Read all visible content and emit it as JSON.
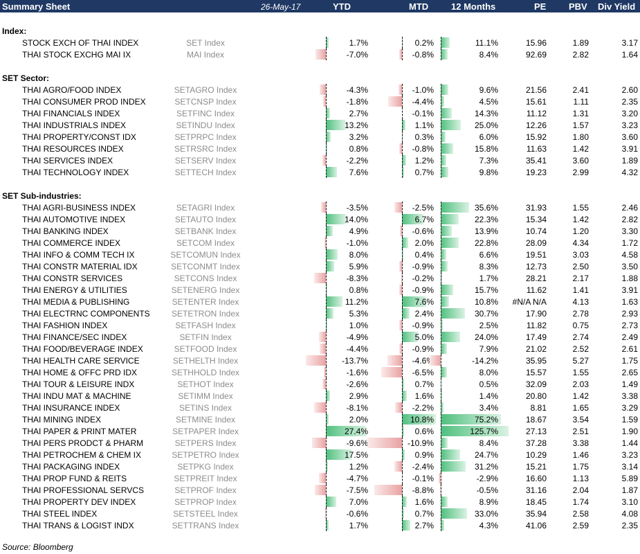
{
  "header": {
    "title": "Summary Sheet",
    "date": "26-May-17",
    "columns": [
      "YTD",
      "MTD",
      "12 Months",
      "PE",
      "PBV",
      "Div Yield"
    ]
  },
  "sections": [
    {
      "title": "Index:",
      "rows": [
        {
          "name": "STOCK EXCH OF THAI INDEX",
          "ticker": "SET Index",
          "ytd": 1.7,
          "ytd_text": "1.7%",
          "mtd": 0.2,
          "mtd_text": "0.2%",
          "m12": 11.1,
          "m12_text": "11.1%",
          "pe": "15.96",
          "pbv": "1.89",
          "dy": "3.17"
        },
        {
          "name": "THAI STOCK EXCHG MAI IX",
          "ticker": "MAI Index",
          "ytd": -7.0,
          "ytd_text": "-7.0%",
          "mtd": -0.8,
          "mtd_text": "-0.8%",
          "m12": 8.4,
          "m12_text": "8.4%",
          "pe": "92.69",
          "pbv": "2.82",
          "dy": "1.64"
        }
      ]
    },
    {
      "title": "SET Sector:",
      "rows": [
        {
          "name": "THAI AGRO/FOOD INDEX",
          "ticker": "SETAGRO Index",
          "ytd": -4.3,
          "ytd_text": "-4.3%",
          "mtd": -1.0,
          "mtd_text": "-1.0%",
          "m12": 9.6,
          "m12_text": "9.6%",
          "pe": "21.56",
          "pbv": "2.41",
          "dy": "2.60"
        },
        {
          "name": "THAI CONSUMER PROD INDEX",
          "ticker": "SETCNSP Index",
          "ytd": -1.8,
          "ytd_text": "-1.8%",
          "mtd": -4.4,
          "mtd_text": "-4.4%",
          "m12": 4.5,
          "m12_text": "4.5%",
          "pe": "15.61",
          "pbv": "1.11",
          "dy": "2.35"
        },
        {
          "name": "THAI FINANCIALS INDEX",
          "ticker": "SETFINC Index",
          "ytd": 2.7,
          "ytd_text": "2.7%",
          "mtd": -0.1,
          "mtd_text": "-0.1%",
          "m12": 14.3,
          "m12_text": "14.3%",
          "pe": "11.12",
          "pbv": "1.31",
          "dy": "3.20"
        },
        {
          "name": "THAI INDUSTRIALS INDEX",
          "ticker": "SETINDU Index",
          "ytd": 13.2,
          "ytd_text": "13.2%",
          "mtd": 1.1,
          "mtd_text": "1.1%",
          "m12": 25.0,
          "m12_text": "25.0%",
          "pe": "12.26",
          "pbv": "1.57",
          "dy": "3.23"
        },
        {
          "name": "THAI PROPERTY/CONST IDX",
          "ticker": "SETPRPC Index",
          "ytd": 3.2,
          "ytd_text": "3.2%",
          "mtd": 0.3,
          "mtd_text": "0.3%",
          "m12": 6.0,
          "m12_text": "6.0%",
          "pe": "15.92",
          "pbv": "1.80",
          "dy": "3.60"
        },
        {
          "name": "THAI RESOURCES INDEX",
          "ticker": "SETRSRC Index",
          "ytd": 0.8,
          "ytd_text": "0.8%",
          "mtd": -0.8,
          "mtd_text": "-0.8%",
          "m12": 15.8,
          "m12_text": "15.8%",
          "pe": "11.63",
          "pbv": "1.42",
          "dy": "3.91"
        },
        {
          "name": "THAI SERVICES INDEX",
          "ticker": "SETSERV Index",
          "ytd": -2.2,
          "ytd_text": "-2.2%",
          "mtd": 1.2,
          "mtd_text": "1.2%",
          "m12": 7.3,
          "m12_text": "7.3%",
          "pe": "35.41",
          "pbv": "3.60",
          "dy": "1.89"
        },
        {
          "name": "THAI TECHNOLOGY INDEX",
          "ticker": "SETTECH Index",
          "ytd": 7.6,
          "ytd_text": "7.6%",
          "mtd": 0.7,
          "mtd_text": "0.7%",
          "m12": 9.8,
          "m12_text": "9.8%",
          "pe": "19.23",
          "pbv": "2.99",
          "dy": "4.32"
        }
      ]
    },
    {
      "title": "SET Sub-industries:",
      "rows": [
        {
          "name": "THAI AGRI-BUSINESS INDEX",
          "ticker": "SETAGRI Index",
          "ytd": -3.5,
          "ytd_text": "-3.5%",
          "mtd": -2.5,
          "mtd_text": "-2.5%",
          "m12": 35.6,
          "m12_text": "35.6%",
          "pe": "31.93",
          "pbv": "1.55",
          "dy": "2.46"
        },
        {
          "name": "THAI AUTOMOTIVE INDEX",
          "ticker": "SETAUTO Index",
          "ytd": 14.0,
          "ytd_text": "14.0%",
          "mtd": 6.7,
          "mtd_text": "6.7%",
          "m12": 22.3,
          "m12_text": "22.3%",
          "pe": "15.34",
          "pbv": "1.42",
          "dy": "2.82"
        },
        {
          "name": "THAI BANKING INDEX",
          "ticker": "SETBANK Index",
          "ytd": 4.9,
          "ytd_text": "4.9%",
          "mtd": -0.6,
          "mtd_text": "-0.6%",
          "m12": 13.9,
          "m12_text": "13.9%",
          "pe": "10.74",
          "pbv": "1.20",
          "dy": "3.30"
        },
        {
          "name": "THAI COMMERCE INDEX",
          "ticker": "SETCOM Index",
          "ytd": -1.0,
          "ytd_text": "-1.0%",
          "mtd": 2.0,
          "mtd_text": "2.0%",
          "m12": 22.8,
          "m12_text": "22.8%",
          "pe": "28.09",
          "pbv": "4.34",
          "dy": "1.72"
        },
        {
          "name": "THAI INFO & COMM TECH IX",
          "ticker": "SETCOMUN Index",
          "ytd": 8.0,
          "ytd_text": "8.0%",
          "mtd": 0.4,
          "mtd_text": "0.4%",
          "m12": 6.6,
          "m12_text": "6.6%",
          "pe": "19.51",
          "pbv": "3.03",
          "dy": "4.58"
        },
        {
          "name": "THAI CONSTR MATERIAL IDX",
          "ticker": "SETCONMT Index",
          "ytd": 5.9,
          "ytd_text": "5.9%",
          "mtd": -0.9,
          "mtd_text": "-0.9%",
          "m12": 8.3,
          "m12_text": "8.3%",
          "pe": "12.73",
          "pbv": "2.50",
          "dy": "3.50"
        },
        {
          "name": "THAI CONSTR SERVICES",
          "ticker": "SETCONS Index",
          "ytd": -8.3,
          "ytd_text": "-8.3%",
          "mtd": -0.2,
          "mtd_text": "-0.2%",
          "m12": 1.7,
          "m12_text": "1.7%",
          "pe": "28.21",
          "pbv": "2.17",
          "dy": "1.88"
        },
        {
          "name": "THAI ENERGY & UTILITIES",
          "ticker": "SETENERG Index",
          "ytd": 0.8,
          "ytd_text": "0.8%",
          "mtd": -0.9,
          "mtd_text": "-0.9%",
          "m12": 15.7,
          "m12_text": "15.7%",
          "pe": "11.62",
          "pbv": "1.41",
          "dy": "3.91"
        },
        {
          "name": "THAI MEDIA & PUBLISHING",
          "ticker": "SETENTER Index",
          "ytd": 11.2,
          "ytd_text": "11.2%",
          "mtd": 7.6,
          "mtd_text": "7.6%",
          "m12": 10.8,
          "m12_text": "10.8%",
          "pe": "#N/A N/A",
          "pbv": "4.13",
          "dy": "1.63"
        },
        {
          "name": "THAI ELECTRNC COMPONENTS",
          "ticker": "SETETRON Index",
          "ytd": 5.3,
          "ytd_text": "5.3%",
          "mtd": 2.4,
          "mtd_text": "2.4%",
          "m12": 30.7,
          "m12_text": "30.7%",
          "pe": "17.90",
          "pbv": "2.78",
          "dy": "2.93"
        },
        {
          "name": "THAI FASHION INDEX",
          "ticker": "SETFASH Index",
          "ytd": 1.0,
          "ytd_text": "1.0%",
          "mtd": -0.9,
          "mtd_text": "-0.9%",
          "m12": 2.5,
          "m12_text": "2.5%",
          "pe": "11.82",
          "pbv": "0.75",
          "dy": "2.73"
        },
        {
          "name": "THAI FINANCE/SEC INDEX",
          "ticker": "SETFIN Index",
          "ytd": -4.9,
          "ytd_text": "-4.9%",
          "mtd": 5.0,
          "mtd_text": "5.0%",
          "m12": 24.0,
          "m12_text": "24.0%",
          "pe": "17.49",
          "pbv": "2.74",
          "dy": "2.49"
        },
        {
          "name": "THAI FOOD/BEVERAGE INDEX",
          "ticker": "SETFOOD Index",
          "ytd": -4.4,
          "ytd_text": "-4.4%",
          "mtd": -0.9,
          "mtd_text": "-0.9%",
          "m12": 7.9,
          "m12_text": "7.9%",
          "pe": "21.02",
          "pbv": "2.52",
          "dy": "2.61"
        },
        {
          "name": "THAI HEALTH CARE SERVICE",
          "ticker": "SETHELTH Index",
          "ytd": -13.7,
          "ytd_text": "-13.7%",
          "mtd": -4.6,
          "mtd_text": "-4.6%",
          "m12": -14.2,
          "m12_text": "-14.2%",
          "pe": "35.95",
          "pbv": "5.27",
          "dy": "1.75"
        },
        {
          "name": "THAI HOME & OFFC PRD IDX",
          "ticker": "SETHHOLD Index",
          "ytd": -1.6,
          "ytd_text": "-1.6%",
          "mtd": -6.5,
          "mtd_text": "-6.5%",
          "m12": 8.0,
          "m12_text": "8.0%",
          "pe": "15.57",
          "pbv": "1.55",
          "dy": "2.65"
        },
        {
          "name": "THAI TOUR & LEISURE INDX",
          "ticker": "SETHOT Index",
          "ytd": -2.6,
          "ytd_text": "-2.6%",
          "mtd": 0.7,
          "mtd_text": "0.7%",
          "m12": 0.5,
          "m12_text": "0.5%",
          "pe": "32.09",
          "pbv": "2.03",
          "dy": "1.49"
        },
        {
          "name": "THAI INDU MAT & MACHINE",
          "ticker": "SETIMM Index",
          "ytd": 2.9,
          "ytd_text": "2.9%",
          "mtd": 1.6,
          "mtd_text": "1.6%",
          "m12": 1.4,
          "m12_text": "1.4%",
          "pe": "20.80",
          "pbv": "1.42",
          "dy": "3.38"
        },
        {
          "name": "THAI INSURANCE INDEX",
          "ticker": "SETINS Index",
          "ytd": -8.1,
          "ytd_text": "-8.1%",
          "mtd": -2.2,
          "mtd_text": "-2.2%",
          "m12": 3.4,
          "m12_text": "3.4%",
          "pe": "8.81",
          "pbv": "1.65",
          "dy": "3.29"
        },
        {
          "name": "THAI MINING INDEX",
          "ticker": "SETMINE Index",
          "ytd": 2.0,
          "ytd_text": "2.0%",
          "mtd": 10.8,
          "mtd_text": "10.8%",
          "m12": 75.2,
          "m12_text": "75.2%",
          "pe": "18.67",
          "pbv": "3.54",
          "dy": "1.59"
        },
        {
          "name": "THAI PAPER & PRINT MATER",
          "ticker": "SETPAPER Index",
          "ytd": 27.4,
          "ytd_text": "27.4%",
          "mtd": 0.6,
          "mtd_text": "0.6%",
          "m12": 125.7,
          "m12_text": "125.7%",
          "pe": "27.13",
          "pbv": "2.51",
          "dy": "1.90"
        },
        {
          "name": "THAI PERS PRODCT & PHARM",
          "ticker": "SETPERS Index",
          "ytd": -9.6,
          "ytd_text": "-9.6%",
          "mtd": -10.9,
          "mtd_text": "-10.9%",
          "m12": 8.4,
          "m12_text": "8.4%",
          "pe": "37.28",
          "pbv": "3.38",
          "dy": "1.44"
        },
        {
          "name": "THAI PETROCHEM & CHEM IX",
          "ticker": "SETPETRO Index",
          "ytd": 17.5,
          "ytd_text": "17.5%",
          "mtd": 0.9,
          "mtd_text": "0.9%",
          "m12": 24.7,
          "m12_text": "24.7%",
          "pe": "10.29",
          "pbv": "1.46",
          "dy": "3.23"
        },
        {
          "name": "THAI PACKAGING INDEX",
          "ticker": "SETPKG Index",
          "ytd": 1.2,
          "ytd_text": "1.2%",
          "mtd": -2.4,
          "mtd_text": "-2.4%",
          "m12": 31.2,
          "m12_text": "31.2%",
          "pe": "15.21",
          "pbv": "1.75",
          "dy": "3.14"
        },
        {
          "name": "THAI PROP FUND & REITS",
          "ticker": "SETPREIT Index",
          "ytd": -4.7,
          "ytd_text": "-4.7%",
          "mtd": -0.1,
          "mtd_text": "-0.1%",
          "m12": -2.9,
          "m12_text": "-2.9%",
          "pe": "16.60",
          "pbv": "1.13",
          "dy": "5.89"
        },
        {
          "name": "THAI PROFESSIONAL SERVCS",
          "ticker": "SETPROF Index",
          "ytd": -7.5,
          "ytd_text": "-7.5%",
          "mtd": -8.8,
          "mtd_text": "-8.8%",
          "m12": -0.5,
          "m12_text": "-0.5%",
          "pe": "31.16",
          "pbv": "2.04",
          "dy": "1.87"
        },
        {
          "name": "THAI PROPERTY DEV INDEX",
          "ticker": "SETPROP Index",
          "ytd": 7.0,
          "ytd_text": "7.0%",
          "mtd": 1.6,
          "mtd_text": "1.6%",
          "m12": 8.9,
          "m12_text": "8.9%",
          "pe": "18.45",
          "pbv": "1.74",
          "dy": "3.10"
        },
        {
          "name": "THAI STEEL INDEX",
          "ticker": "SETSTEEL Index",
          "ytd": -0.6,
          "ytd_text": "-0.6%",
          "mtd": 0.7,
          "mtd_text": "0.7%",
          "m12": 33.0,
          "m12_text": "33.0%",
          "pe": "35.94",
          "pbv": "2.58",
          "dy": "4.08"
        },
        {
          "name": "THAI TRANS & LOGIST INDX",
          "ticker": "SETTRANS Index",
          "ytd": 1.7,
          "ytd_text": "1.7%",
          "mtd": 2.7,
          "mtd_text": "2.7%",
          "m12": 4.3,
          "m12_text": "4.3%",
          "pe": "41.06",
          "pbv": "2.59",
          "dy": "2.35"
        }
      ]
    }
  ],
  "source": "Source: Bloomberg",
  "colors": {
    "header_bg": "#1f3864",
    "positive_bar": "#4fbf7e",
    "negative_bar": "#e8a3a3",
    "ticker_text": "#8c8c8c"
  }
}
